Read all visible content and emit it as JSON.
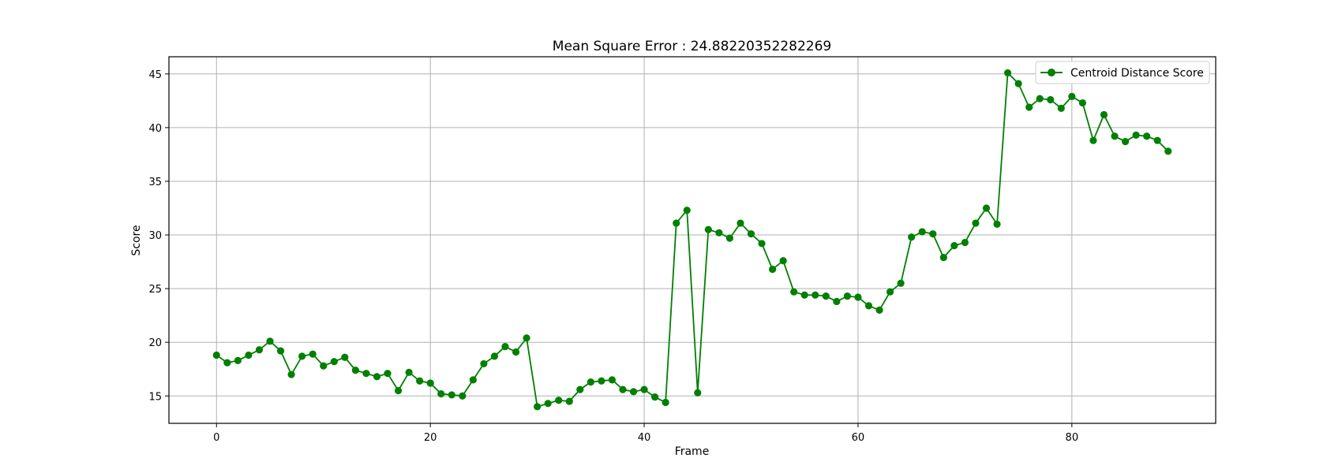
{
  "chart_data": {
    "type": "line",
    "title": "Mean Square Error : 24.88220352282269",
    "xlabel": "Frame",
    "ylabel": "Score",
    "xlim": [
      -4.45,
      93.45
    ],
    "ylim": [
      12.45,
      46.6
    ],
    "xticks": [
      0,
      20,
      40,
      60,
      80
    ],
    "yticks": [
      15,
      20,
      25,
      30,
      35,
      40,
      45
    ],
    "grid": true,
    "legend": "top-right",
    "series": [
      {
        "name": "Centroid Distance Score",
        "color": "#008000",
        "marker": "circle",
        "x": [
          0,
          1,
          2,
          3,
          4,
          5,
          6,
          7,
          8,
          9,
          10,
          11,
          12,
          13,
          14,
          15,
          16,
          17,
          18,
          19,
          20,
          21,
          22,
          23,
          24,
          25,
          26,
          27,
          28,
          29,
          30,
          31,
          32,
          33,
          34,
          35,
          36,
          37,
          38,
          39,
          40,
          41,
          42,
          43,
          44,
          45,
          46,
          47,
          48,
          49,
          50,
          51,
          52,
          53,
          54,
          55,
          56,
          57,
          58,
          59,
          60,
          61,
          62,
          63,
          64,
          65,
          66,
          67,
          68,
          69,
          70,
          71,
          72,
          73,
          74,
          75,
          76,
          77,
          78,
          79,
          80,
          81,
          82,
          83,
          84,
          85,
          86,
          87,
          88,
          89
        ],
        "y": [
          18.8,
          18.1,
          18.3,
          18.8,
          19.3,
          20.1,
          19.2,
          17.0,
          18.7,
          18.9,
          17.8,
          18.2,
          18.6,
          17.4,
          17.1,
          16.8,
          17.1,
          15.5,
          17.2,
          16.4,
          16.2,
          15.2,
          15.1,
          15.0,
          16.5,
          18.0,
          18.7,
          19.6,
          19.1,
          20.4,
          14.0,
          14.3,
          14.6,
          14.5,
          15.6,
          16.3,
          16.4,
          16.5,
          15.6,
          15.4,
          15.6,
          14.9,
          14.4,
          31.1,
          32.3,
          15.3,
          30.5,
          30.2,
          29.7,
          31.1,
          30.1,
          29.2,
          26.8,
          27.6,
          24.7,
          24.4,
          24.4,
          24.3,
          23.8,
          24.3,
          24.2,
          23.4,
          23.0,
          24.7,
          25.5,
          29.8,
          30.3,
          30.1,
          27.9,
          29.0,
          29.3,
          31.1,
          32.5,
          31.0,
          45.1,
          44.1,
          41.9,
          42.7,
          42.6,
          41.8,
          42.9,
          42.3,
          38.8,
          41.2,
          39.2,
          38.7,
          39.3,
          39.2,
          38.8,
          37.8
        ]
      }
    ]
  }
}
